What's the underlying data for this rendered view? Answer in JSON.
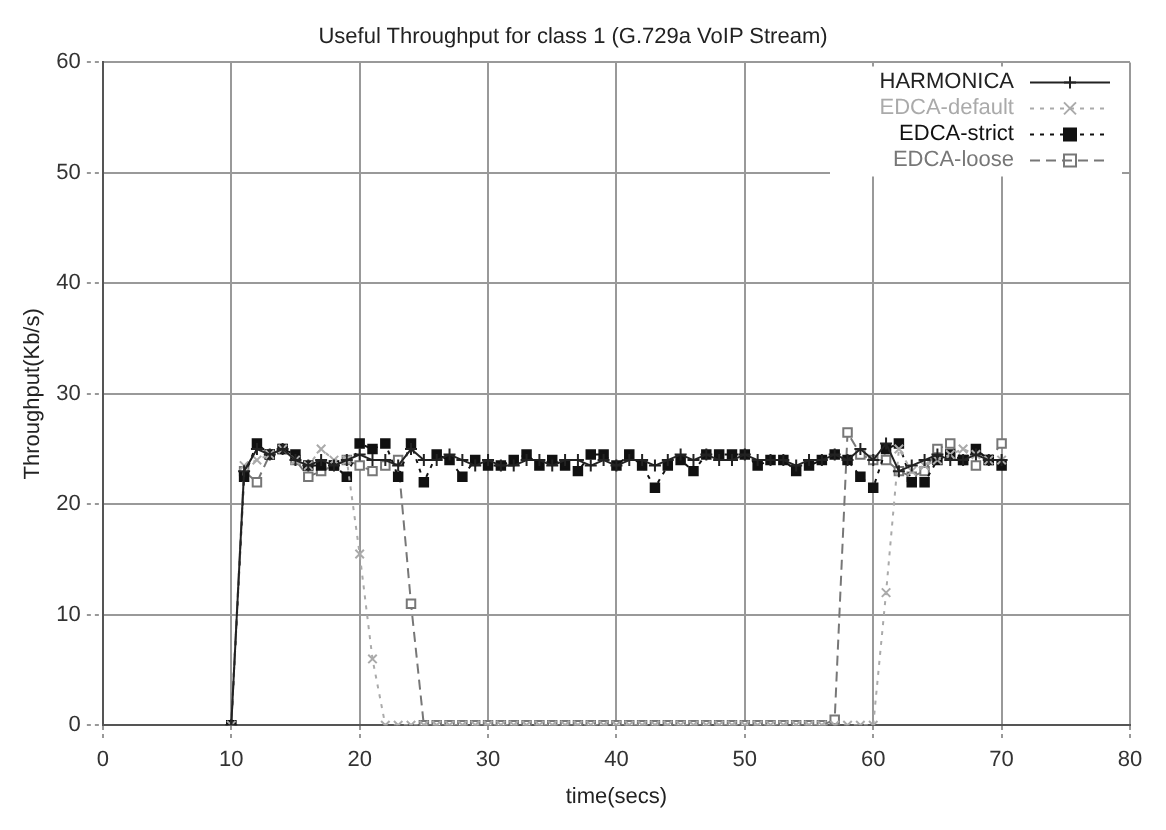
{
  "chart_data": {
    "type": "line",
    "title": "Useful Throughput for class 1 (G.729a VoIP Stream)",
    "xlabel": "time(secs)",
    "ylabel": "Throughput(Kb/s)",
    "x": [
      10,
      11,
      12,
      13,
      14,
      15,
      16,
      17,
      18,
      19,
      20,
      21,
      22,
      23,
      24,
      25,
      26,
      27,
      28,
      29,
      30,
      31,
      32,
      33,
      34,
      35,
      36,
      37,
      38,
      39,
      40,
      41,
      42,
      43,
      44,
      45,
      46,
      47,
      48,
      49,
      50,
      51,
      52,
      53,
      54,
      55,
      56,
      57,
      58,
      59,
      60,
      61,
      62,
      63,
      64,
      65,
      66,
      67,
      68,
      69,
      70
    ],
    "series": [
      {
        "name": "HARMONICA",
        "color": "#222222",
        "marker": "cross",
        "line_style": "solid",
        "values": [
          0,
          23,
          25,
          24.5,
          25,
          24,
          23.5,
          24,
          23.5,
          24,
          24.5,
          24,
          24,
          23.5,
          25,
          24,
          24,
          24.5,
          24,
          23.5,
          24,
          23.5,
          23.5,
          24,
          24,
          23.5,
          24,
          24,
          23.5,
          24,
          23.5,
          24,
          24,
          23.5,
          24,
          24.5,
          24,
          24.5,
          24,
          24,
          24.5,
          24,
          24,
          24,
          23.5,
          24,
          24,
          24.5,
          24,
          25,
          24,
          25.5,
          23,
          23.5,
          24,
          24.5,
          24,
          24,
          24.5,
          24,
          24
        ]
      },
      {
        "name": "EDCA-default",
        "color": "#aaaaaa",
        "marker": "x",
        "line_style": "dotted",
        "values": [
          0,
          23.5,
          24,
          24.5,
          25,
          24,
          23.5,
          25,
          24,
          24,
          15.5,
          6,
          0,
          0,
          0,
          0,
          0,
          0,
          0,
          0,
          0,
          0,
          0,
          0,
          0,
          0,
          0,
          0,
          0,
          0,
          0,
          0,
          0,
          0,
          0,
          0,
          0,
          0,
          0,
          0,
          0,
          0,
          0,
          0,
          0,
          0,
          0,
          0,
          0,
          0,
          0,
          12,
          25,
          23,
          23.5,
          24,
          24.5,
          25,
          24.5,
          24,
          24
        ]
      },
      {
        "name": "EDCA-strict",
        "color": "#111111",
        "marker": "square",
        "line_style": "dotted",
        "values": [
          0,
          22.5,
          25.5,
          24.5,
          25,
          24.5,
          23.5,
          23.5,
          23.5,
          22.5,
          25.5,
          25,
          25.5,
          22.5,
          25.5,
          22,
          24.5,
          24,
          22.5,
          24,
          23.5,
          23.5,
          24,
          24.5,
          23.5,
          24,
          23.5,
          23,
          24.5,
          24.5,
          23.5,
          24.5,
          23.5,
          21.5,
          23.5,
          24,
          23,
          24.5,
          24.5,
          24.5,
          24.5,
          23.5,
          24,
          24,
          23,
          23.5,
          24,
          24.5,
          24,
          22.5,
          21.5,
          25,
          25.5,
          22,
          22,
          24,
          24.5,
          24,
          25,
          24,
          23.5
        ]
      },
      {
        "name": "EDCA-loose",
        "color": "#777777",
        "marker": "square",
        "line_style": "dashed",
        "values": [
          0,
          23,
          22,
          24.5,
          25,
          24,
          22.5,
          23,
          23.5,
          24,
          23.5,
          23,
          23.5,
          24,
          11,
          0,
          0,
          0,
          0,
          0,
          0,
          0,
          0,
          0,
          0,
          0,
          0,
          0,
          0,
          0,
          0,
          0,
          0,
          0,
          0,
          0,
          0,
          0,
          0,
          0,
          0,
          0,
          0,
          0,
          0,
          0,
          0,
          0.5,
          26.5,
          24.5,
          24,
          24,
          23,
          22.5,
          23,
          25,
          25.5,
          24,
          23.5,
          24,
          25.5
        ]
      }
    ],
    "xlim": [
      0,
      80
    ],
    "xticks": [
      0,
      10,
      20,
      30,
      40,
      50,
      60,
      70,
      80
    ],
    "ylim": [
      0,
      60
    ],
    "yticks": [
      0,
      10,
      20,
      30,
      40,
      50,
      60
    ],
    "grid": true,
    "legend": "top right"
  }
}
